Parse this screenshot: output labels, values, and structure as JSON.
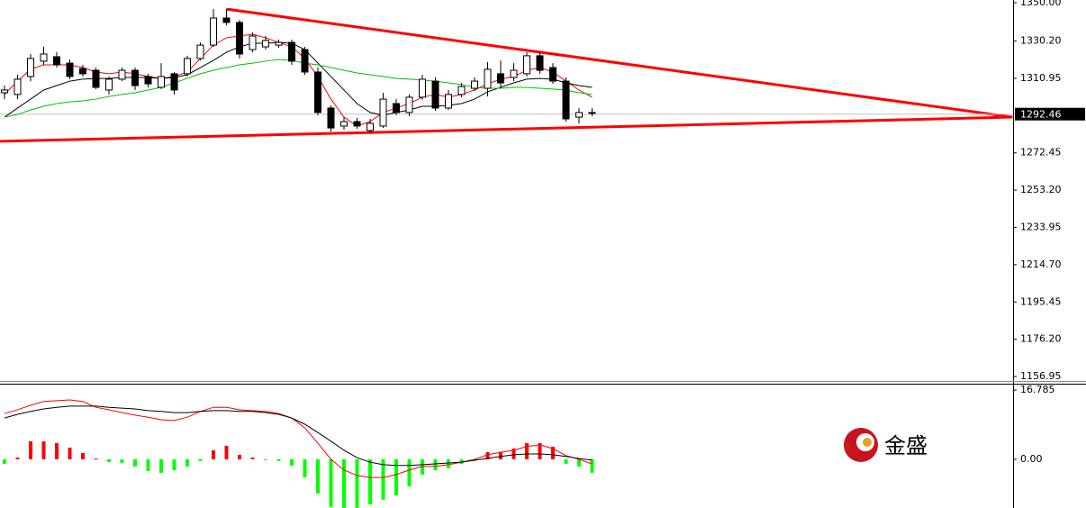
{
  "chart_data": [
    {
      "type": "candlestick",
      "ylim": [
        1155.1,
        1351.4
      ],
      "yticks": [
        {
          "value": 1350.0,
          "label": "1350.00"
        },
        {
          "value": 1330.2,
          "label": "1330.20"
        },
        {
          "value": 1310.95,
          "label": "1310.95"
        },
        {
          "value": 1272.45,
          "label": "1272.45"
        },
        {
          "value": 1253.2,
          "label": "1253.20"
        },
        {
          "value": 1233.95,
          "label": "1233.95"
        },
        {
          "value": 1214.7,
          "label": "1214.70"
        },
        {
          "value": 1195.45,
          "label": "1195.45"
        },
        {
          "value": 1176.2,
          "label": "1176.20"
        },
        {
          "value": 1156.95,
          "label": "1156.95"
        }
      ],
      "last_price": 1292.46,
      "up_color": "#ffffff",
      "down_color": "#000000",
      "open": [
        1303.5,
        1302.6,
        1311.9,
        1319.8,
        1322.1,
        1318.8,
        1316.0,
        1315.1,
        1304.9,
        1310.5,
        1315.1,
        1311.9,
        1306.3,
        1313.3,
        1313.3,
        1321.2,
        1328.1,
        1342.1,
        1339.8,
        1325.8,
        1327.2,
        1328.1,
        1329.5,
        1325.8,
        1314.2,
        1295.6,
        1286.3,
        1288.6,
        1284.0,
        1286.3,
        1297.9,
        1293.3,
        1301.2,
        1309.5,
        1295.6,
        1302.6,
        1305.8,
        1305.8,
        1313.3,
        1311.4,
        1313.3,
        1322.6,
        1316.5,
        1309.5,
        1290.9,
        1293.3
      ],
      "high": [
        1307.2,
        1312.8,
        1323.5,
        1327.2,
        1324.4,
        1320.7,
        1317.9,
        1316.5,
        1311.9,
        1316.5,
        1316.5,
        1313.3,
        1318.8,
        1314.2,
        1322.6,
        1329.5,
        1346.7,
        1346.7,
        1341.1,
        1334.6,
        1332.8,
        1331.0,
        1331.0,
        1327.2,
        1316.5,
        1297.0,
        1290.9,
        1290.5,
        1290.0,
        1303.5,
        1300.2,
        1302.6,
        1312.8,
        1311.4,
        1304.9,
        1308.6,
        1311.4,
        1319.3,
        1320.2,
        1318.8,
        1324.4,
        1324.4,
        1318.8,
        1311.4,
        1295.6,
        1295.6
      ],
      "low": [
        1300.2,
        1300.2,
        1309.5,
        1317.9,
        1316.5,
        1310.5,
        1311.9,
        1305.4,
        1302.6,
        1309.5,
        1304.9,
        1306.3,
        1305.4,
        1302.6,
        1311.9,
        1320.2,
        1327.2,
        1338.4,
        1321.2,
        1324.4,
        1325.8,
        1326.7,
        1317.9,
        1312.8,
        1291.9,
        1283.5,
        1284.4,
        1284.9,
        1282.6,
        1285.3,
        1291.9,
        1291.4,
        1299.8,
        1294.2,
        1294.6,
        1301.2,
        1304.4,
        1301.6,
        1306.3,
        1309.5,
        1311.9,
        1313.3,
        1308.1,
        1288.6,
        1287.7,
        1291.4
      ],
      "close": [
        1304.9,
        1310.5,
        1321.2,
        1323.5,
        1317.9,
        1311.9,
        1313.3,
        1306.3,
        1310.5,
        1315.1,
        1307.2,
        1308.1,
        1311.9,
        1304.9,
        1321.2,
        1328.1,
        1342.1,
        1339.8,
        1323.5,
        1332.8,
        1330.5,
        1329.5,
        1319.8,
        1314.2,
        1293.3,
        1285.3,
        1288.6,
        1286.3,
        1287.7,
        1300.2,
        1293.3,
        1301.2,
        1310.5,
        1295.6,
        1302.6,
        1306.7,
        1309.5,
        1315.6,
        1308.6,
        1315.1,
        1322.6,
        1315.1,
        1309.5,
        1290.0,
        1293.3,
        1293.3
      ],
      "series": [
        {
          "color": "#ff0000",
          "values": [
            1302.6,
            1309.5,
            1315.6,
            1317.9,
            1317.9,
            1317.9,
            1316.5,
            1314.2,
            1313.3,
            1314.2,
            1313.3,
            1311.9,
            1310.9,
            1311.9,
            1314.2,
            1321.2,
            1328.1,
            1331.9,
            1332.8,
            1333.7,
            1331.9,
            1329.5,
            1327.2,
            1321.2,
            1311.9,
            1300.2,
            1290.9,
            1286.3,
            1288.6,
            1293.3,
            1295.6,
            1297.9,
            1301.2,
            1302.6,
            1301.2,
            1302.6,
            1304.9,
            1308.1,
            1310.5,
            1311.9,
            1315.1,
            1316.5,
            1314.2,
            1309.5,
            1304.9,
            1301.2
          ]
        },
        {
          "color": "#000000",
          "values": [
            1290.9,
            1295.6,
            1300.2,
            1304.9,
            1307.2,
            1309.5,
            1310.5,
            1310.9,
            1310.9,
            1311.4,
            1311.4,
            1311.4,
            1310.9,
            1311.4,
            1312.8,
            1316.5,
            1320.2,
            1324.4,
            1327.2,
            1329.1,
            1329.1,
            1329.5,
            1329.1,
            1325.8,
            1318.8,
            1311.9,
            1304.9,
            1297.9,
            1293.3,
            1291.9,
            1293.3,
            1294.6,
            1296.5,
            1296.5,
            1297.0,
            1297.9,
            1300.2,
            1304.0,
            1306.3,
            1308.6,
            1310.5,
            1310.9,
            1310.5,
            1308.6,
            1307.2,
            1306.3
          ]
        },
        {
          "color": "#00c000",
          "values": [
            1290.9,
            1292.3,
            1294.6,
            1296.5,
            1297.9,
            1298.8,
            1299.3,
            1300.2,
            1301.6,
            1302.6,
            1303.5,
            1304.9,
            1306.3,
            1308.6,
            1310.9,
            1313.3,
            1315.1,
            1316.5,
            1317.9,
            1318.8,
            1319.8,
            1320.7,
            1320.2,
            1318.8,
            1317.9,
            1316.5,
            1315.1,
            1313.7,
            1312.8,
            1311.9,
            1310.9,
            1310.5,
            1310.0,
            1309.5,
            1308.6,
            1307.7,
            1306.3,
            1305.8,
            1305.8,
            1306.3,
            1306.3,
            1305.8,
            1305.4,
            1304.9,
            1303.5,
            1302.6
          ]
        }
      ],
      "trendlines": [
        {
          "color": "#ff0000",
          "x": [
            17,
            77.2
          ],
          "y": [
            1346.7,
            1290.9
          ]
        },
        {
          "color": "#ff0000",
          "x": [
            -0.34,
            77.2
          ],
          "y": [
            1278.4,
            1290.9
          ]
        }
      ]
    },
    {
      "type": "macd",
      "ylim": [
        -11.8,
        18.1
      ],
      "yticks": [
        16.785,
        {
          "value": 0,
          "label": "0.00"
        }
      ],
      "up_color": "#ff0000",
      "down_color": "#00ff00",
      "values": [
        -1.09,
        0.44,
        4.36,
        4.36,
        3.92,
        2.83,
        1.53,
        0.22,
        -0.65,
        -0.87,
        -1.74,
        -2.83,
        -3.27,
        -2.62,
        -1.74,
        -0.44,
        2.18,
        3.27,
        1.09,
        0.44,
        -0.11,
        -0.44,
        -1.53,
        -4.36,
        -8.28,
        -11.55,
        -11.77,
        -11.77,
        -10.9,
        -9.81,
        -8.72,
        -6.54,
        -3.71,
        -2.62,
        -2.18,
        -1.09,
        -0.44,
        1.74,
        1.74,
        2.62,
        3.92,
        3.92,
        3.05,
        -1.09,
        -1.74,
        -3.27
      ],
      "series": [
        {
          "color": "#ff0000",
          "values": [
            11.1,
            12.0,
            13.1,
            14.0,
            14.2,
            14.4,
            14.0,
            12.6,
            12.0,
            11.3,
            10.7,
            10.2,
            9.6,
            9.4,
            10.2,
            11.6,
            12.6,
            12.6,
            12.0,
            11.8,
            11.6,
            11.1,
            10.0,
            7.6,
            3.9,
            0,
            -2.6,
            -3.9,
            -4.4,
            -4.4,
            -3.7,
            -2.6,
            -1.7,
            -1.7,
            -1.3,
            -0.7,
            0,
            1.1,
            1.7,
            2.2,
            3.1,
            3.5,
            2.6,
            0.9,
            0,
            -1.1
          ]
        },
        {
          "color": "#000000",
          "values": [
            10.0,
            10.9,
            11.6,
            12.2,
            12.6,
            12.9,
            12.9,
            12.9,
            12.6,
            12.4,
            12.2,
            11.8,
            11.6,
            11.3,
            11.3,
            11.6,
            11.8,
            11.8,
            11.6,
            11.6,
            11.3,
            10.9,
            10.0,
            8.5,
            6.5,
            4.4,
            2.2,
            0.4,
            -0.7,
            -1.3,
            -1.5,
            -1.5,
            -1.3,
            -1.1,
            -0.9,
            -0.7,
            -0.2,
            0.2,
            0.7,
            1.1,
            1.3,
            1.3,
            1.1,
            0.7,
            0.2,
            -0.2
          ]
        }
      ]
    }
  ],
  "watermark": "金盛"
}
